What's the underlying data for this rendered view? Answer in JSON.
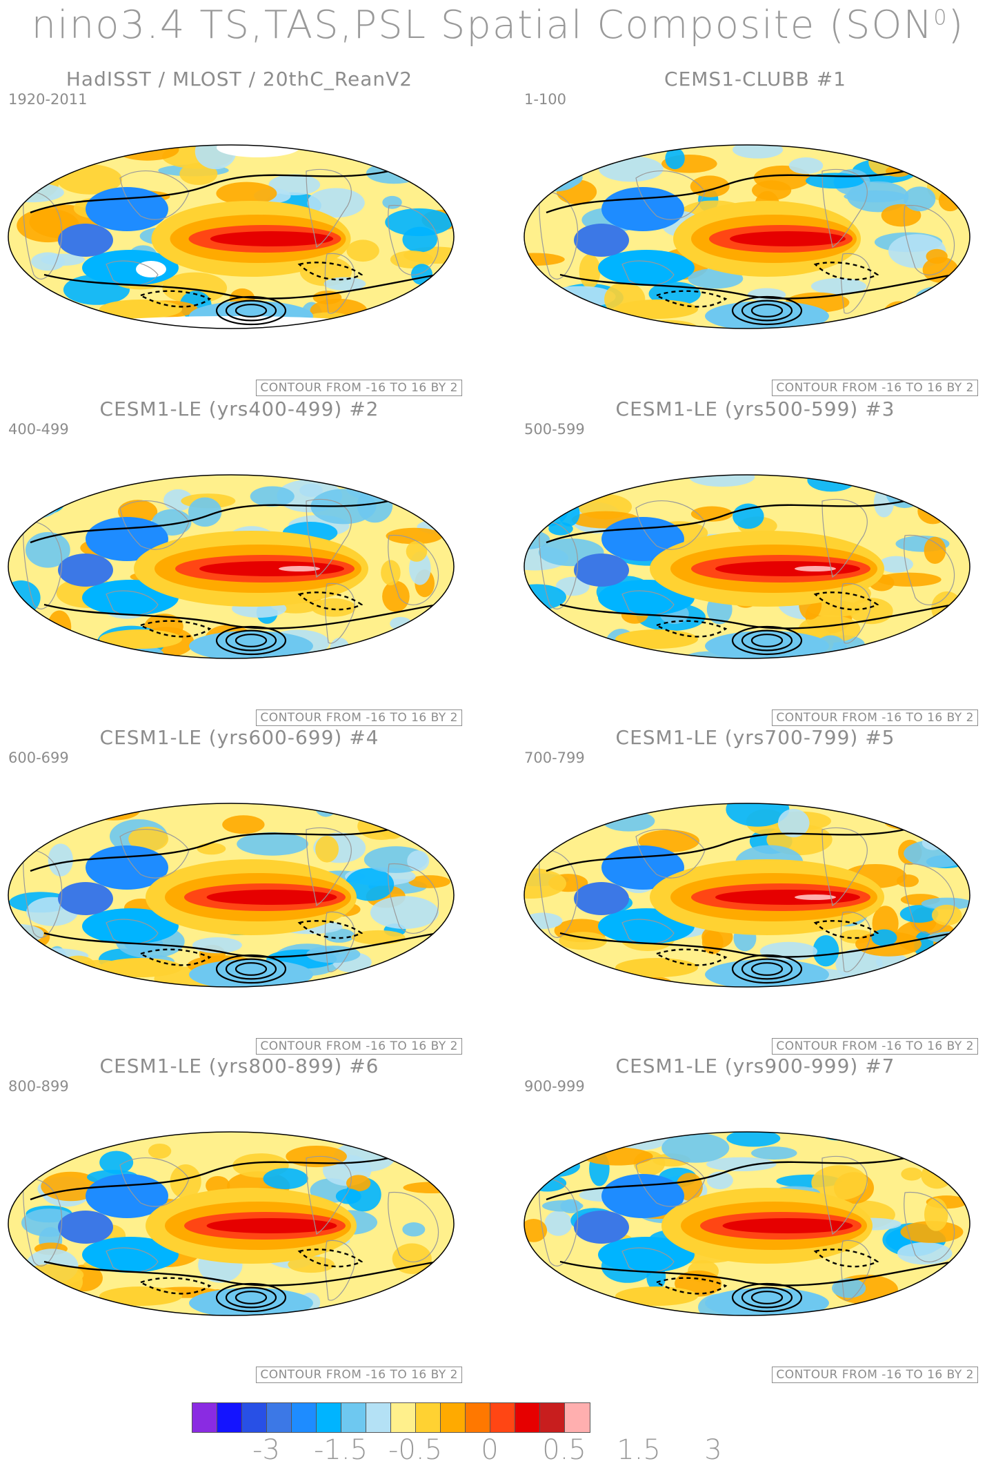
{
  "title": "nino3.4 TS,TAS,PSL Spatial Composite (SON",
  "title_superscript": "0",
  "title_close": ")",
  "contour_note": "CONTOUR FROM -16 TO 16 BY 2",
  "panels": [
    {
      "title": "HadISST / MLOST / 20thC_ReanV2",
      "years": "1920-2011",
      "observed": true,
      "nino_strength": 0.85
    },
    {
      "title": "CEMS1-CLUBB        #1",
      "years": "1-100",
      "observed": false,
      "nino_strength": 0.8
    },
    {
      "title": "CESM1-LE (yrs400-499) #2",
      "years": "400-499",
      "observed": false,
      "nino_strength": 1.0
    },
    {
      "title": "CESM1-LE (yrs500-599) #3",
      "years": "500-599",
      "observed": false,
      "nino_strength": 1.0
    },
    {
      "title": "CESM1-LE (yrs600-699) #4",
      "years": "600-699",
      "observed": false,
      "nino_strength": 0.9
    },
    {
      "title": "CESM1-LE (yrs700-799) #5",
      "years": "700-799",
      "observed": false,
      "nino_strength": 1.0
    },
    {
      "title": "CESM1-LE (yrs800-899) #6",
      "years": "800-899",
      "observed": false,
      "nino_strength": 0.9
    },
    {
      "title": "CESM1-LE (yrs900-999) #7",
      "years": "900-999",
      "observed": false,
      "nino_strength": 0.9
    }
  ],
  "colorbar": {
    "colors": [
      "#8a2be2",
      "#1414ff",
      "#2850e6",
      "#3c78e6",
      "#1e8cff",
      "#00b4ff",
      "#6ec8f0",
      "#b4e1f5",
      "#fff08c",
      "#ffd232",
      "#ffaa00",
      "#ff7800",
      "#ff4614",
      "#e60000",
      "#c81e1e",
      "#ffafaf"
    ],
    "tick_labels": [
      "-3",
      "-1.5",
      "-0.5",
      "0",
      "0.5",
      "1.5",
      "3"
    ]
  }
}
